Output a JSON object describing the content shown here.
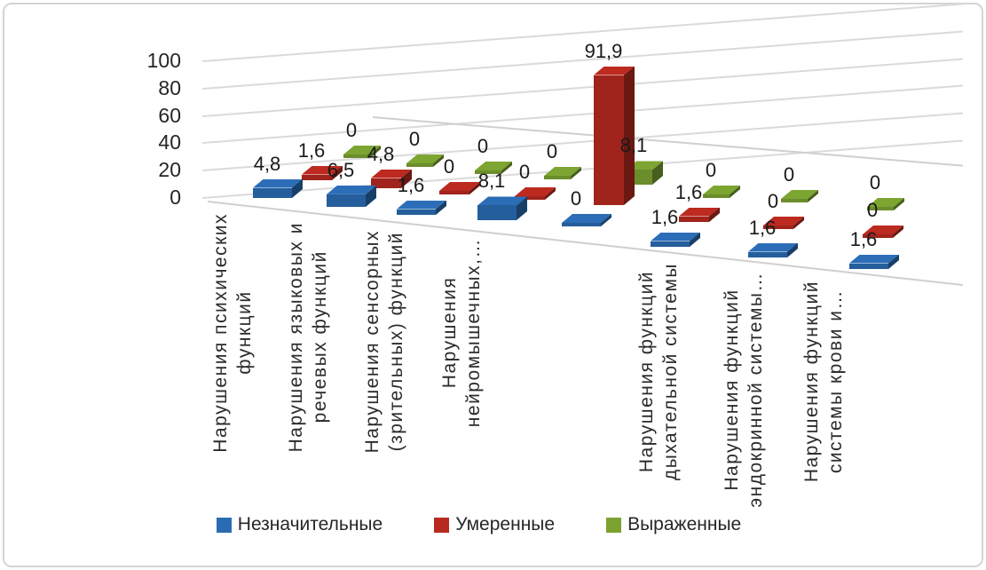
{
  "chart_data": {
    "type": "bar",
    "projection": "3d",
    "title": "",
    "categories": [
      "Нарушения психических\nфункций",
      "Нарушения языковых и\nречевых функций",
      "Нарушения сенсорных\n(зрительных) функций",
      "Нарушения\nнейромышечных,…",
      "",
      "Нарушения функций\nдыхательной системы",
      "Нарушения функций\nэндокринной системы…",
      "Нарушения функций\nсистемы крови и…"
    ],
    "series": [
      {
        "name": "Незначительные",
        "color": "#2a6cb3",
        "values": [
          4.8,
          6.5,
          1.6,
          8.1,
          0,
          1.6,
          1.6,
          1.6
        ]
      },
      {
        "name": "Умеренные",
        "color": "#b8291f",
        "values": [
          1.6,
          4.8,
          0,
          0,
          91.9,
          1.6,
          0,
          0
        ]
      },
      {
        "name": "Выраженные",
        "color": "#7ba231",
        "values": [
          0,
          0,
          0,
          0,
          8.1,
          0,
          0,
          0
        ]
      }
    ],
    "y_axis": {
      "ticks": [
        "0",
        "20",
        "40",
        "60",
        "80",
        "100"
      ],
      "min": 0,
      "max": 100
    },
    "decimal_separator": ",",
    "grid": true,
    "legend_position": "bottom"
  }
}
